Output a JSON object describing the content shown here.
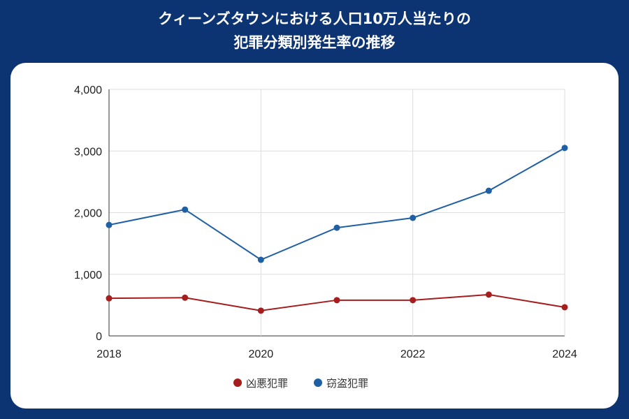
{
  "title_lines": [
    "クィーンズタウンにおける人口10万人当たりの",
    "犯罪分類別発生率の推移"
  ],
  "chart_data": {
    "type": "line",
    "title": "クィーンズタウンにおける人口10万人当たりの犯罪分類別発生率の推移",
    "x": [
      2018,
      2019,
      2020,
      2021,
      2022,
      2023,
      2024
    ],
    "x_tick_labels": [
      "2018",
      "2020",
      "2022",
      "2024"
    ],
    "y_tick_labels": [
      "0",
      "1,000",
      "2,000",
      "3,000",
      "4,000"
    ],
    "ylim": [
      0,
      4000
    ],
    "grid": true,
    "legend_position": "bottom",
    "series": [
      {
        "name": "凶悪犯罪",
        "color": "#a51d1d",
        "values": [
          610,
          620,
          410,
          580,
          580,
          670,
          465
        ]
      },
      {
        "name": "窃盗犯罪",
        "color": "#1f5fa3",
        "values": [
          1800,
          2050,
          1235,
          1755,
          1915,
          2355,
          3050
        ]
      }
    ]
  }
}
